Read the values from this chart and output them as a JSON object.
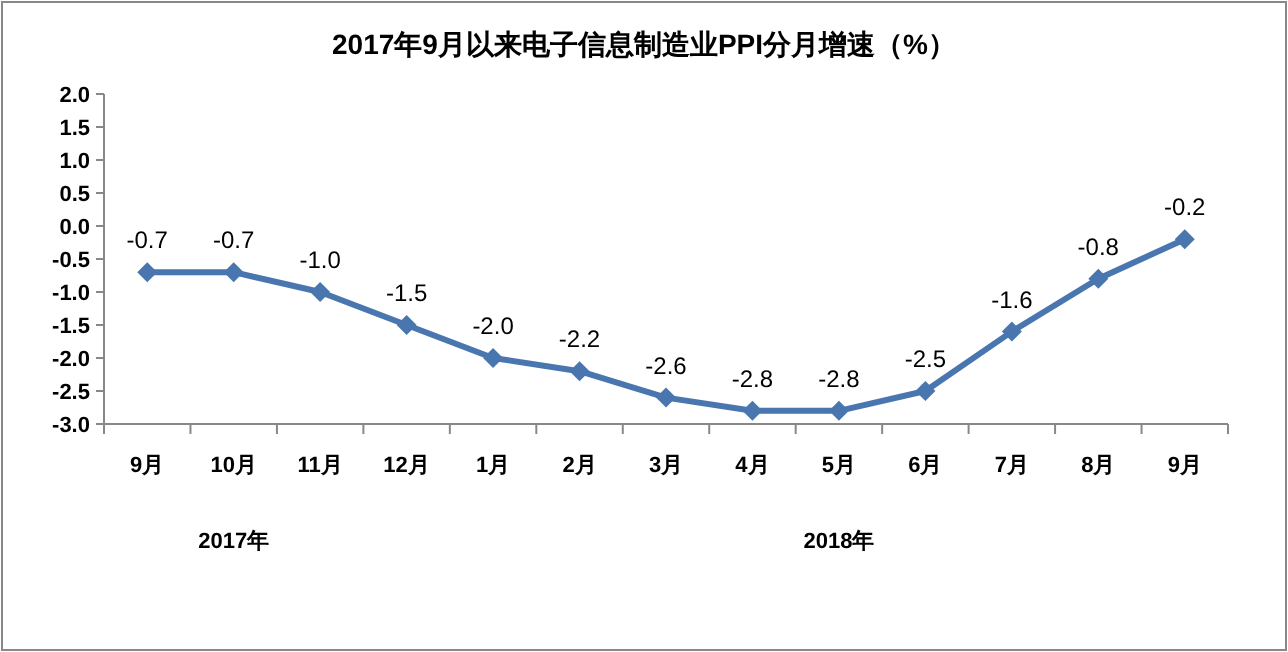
{
  "chart_data": {
    "type": "line",
    "title": "2017年9月以来电子信息制造业PPI分月增速（%）",
    "categories": [
      "9月",
      "10月",
      "11月",
      "12月",
      "1月",
      "2月",
      "3月",
      "4月",
      "5月",
      "6月",
      "7月",
      "8月",
      "9月"
    ],
    "series": [
      {
        "color": "#4a76b0",
        "values": [
          -0.7,
          -0.7,
          -1.0,
          -1.5,
          -2.0,
          -2.2,
          -2.6,
          -2.8,
          -2.8,
          -2.5,
          -1.6,
          -0.8,
          -0.2
        ],
        "value_labels": [
          "-0.7",
          "-0.7",
          "-1.0",
          "-1.5",
          "-2.0",
          "-2.2",
          "-2.6",
          "-2.8",
          "-2.8",
          "-2.5",
          "-1.6",
          "-0.8",
          "-0.2"
        ]
      }
    ],
    "ylim": [
      -3,
      2
    ],
    "yticks": [
      {
        "value": 2,
        "label": "2.0"
      },
      {
        "value": 1.5,
        "label": "1.5"
      },
      {
        "value": 1,
        "label": "1.0"
      },
      {
        "value": 0.5,
        "label": "0.5"
      },
      {
        "value": 0,
        "label": "0.0"
      },
      {
        "value": -0.5,
        "label": "-0.5"
      },
      {
        "value": -1,
        "label": "-1.0"
      },
      {
        "value": -1.5,
        "label": "-1.5"
      },
      {
        "value": -2,
        "label": "-2.0"
      },
      {
        "value": -2.5,
        "label": "-2.5"
      },
      {
        "value": -3,
        "label": "-3.0"
      }
    ],
    "marker": "diamond",
    "grid": false,
    "annotations": [
      "2017年",
      "2018年"
    ]
  }
}
